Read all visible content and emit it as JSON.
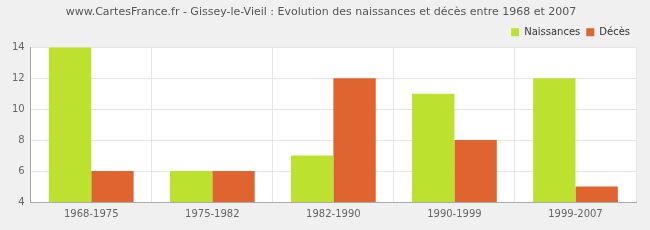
{
  "chart_data": {
    "type": "bar",
    "title": "www.CartesFrance.fr - Gissey-le-Vieil : Evolution des naissances et décès entre 1968 et 2007",
    "categories": [
      "1968-1975",
      "1975-1982",
      "1982-1990",
      "1990-1999",
      "1999-2007"
    ],
    "series": [
      {
        "name": "Naissances",
        "color": "#bce22f",
        "values": [
          14,
          6,
          7,
          11,
          12
        ]
      },
      {
        "name": "Décès",
        "color": "#e0642f",
        "values": [
          6,
          6,
          12,
          8,
          5
        ]
      }
    ],
    "ylim": [
      4,
      14
    ],
    "yticks": [
      4,
      6,
      8,
      10,
      12,
      14
    ],
    "grid": true,
    "legend": "top-right"
  }
}
